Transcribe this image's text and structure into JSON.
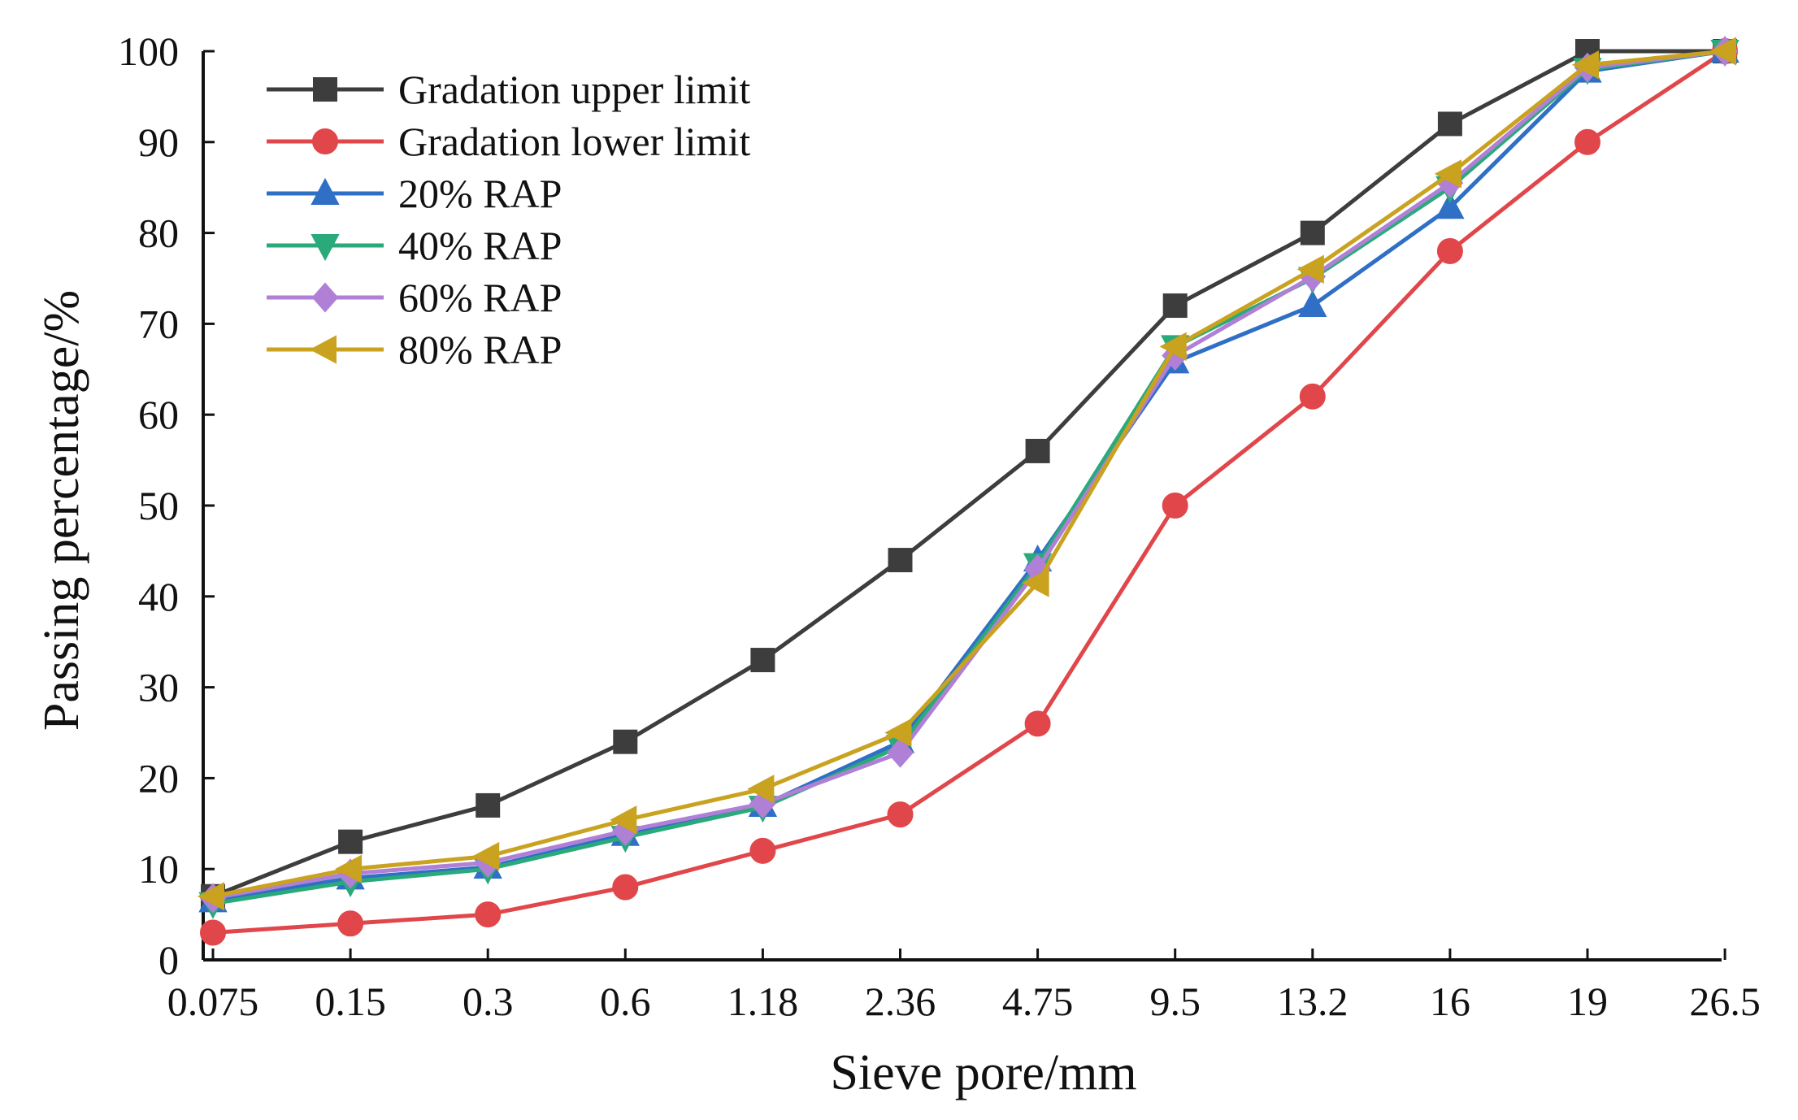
{
  "chart_data": {
    "type": "line",
    "title": "",
    "xlabel": "Sieve pore/mm",
    "ylabel": "Passing percentage/%",
    "categories": [
      "0.075",
      "0.15",
      "0.3",
      "0.6",
      "1.18",
      "2.36",
      "4.75",
      "9.5",
      "13.2",
      "16",
      "19",
      "26.5"
    ],
    "yticks": [
      "0",
      "10",
      "20",
      "30",
      "40",
      "50",
      "60",
      "70",
      "80",
      "90",
      "100"
    ],
    "ylim": [
      0,
      100
    ],
    "grid": false,
    "legend_position": "top-left",
    "series": [
      {
        "name": "Gradation upper limit",
        "color": "#3d3d3d",
        "marker": "square",
        "values": [
          7,
          13,
          17,
          24,
          33,
          44,
          56,
          72,
          80,
          92,
          100,
          100
        ]
      },
      {
        "name": "Gradation lower limit",
        "color": "#e0464a",
        "marker": "circle",
        "values": [
          3,
          4,
          5,
          8,
          12,
          16,
          26,
          50,
          62,
          78,
          90,
          100
        ]
      },
      {
        "name": "20% RAP",
        "color": "#2f6fc6",
        "marker": "triangle-up",
        "values": [
          6.5,
          9.0,
          10.2,
          13.8,
          17.0,
          24.0,
          44.0,
          65.8,
          72.0,
          82.8,
          97.8,
          100
        ]
      },
      {
        "name": "40% RAP",
        "color": "#2aaa7a",
        "marker": "triangle-down",
        "values": [
          6.2,
          8.6,
          10.0,
          13.5,
          16.8,
          23.5,
          43.5,
          67.5,
          75.0,
          85.0,
          98.0,
          100
        ]
      },
      {
        "name": "60% RAP",
        "color": "#b07fd6",
        "marker": "diamond",
        "values": [
          6.8,
          9.5,
          10.7,
          14.2,
          17.2,
          22.8,
          43.0,
          66.5,
          75.2,
          85.5,
          98.2,
          100
        ]
      },
      {
        "name": "80% RAP",
        "color": "#c9a21f",
        "marker": "triangle-left",
        "values": [
          7.0,
          10.0,
          11.4,
          15.4,
          18.8,
          25.0,
          41.5,
          67.5,
          76.0,
          86.5,
          98.5,
          100
        ]
      }
    ]
  }
}
